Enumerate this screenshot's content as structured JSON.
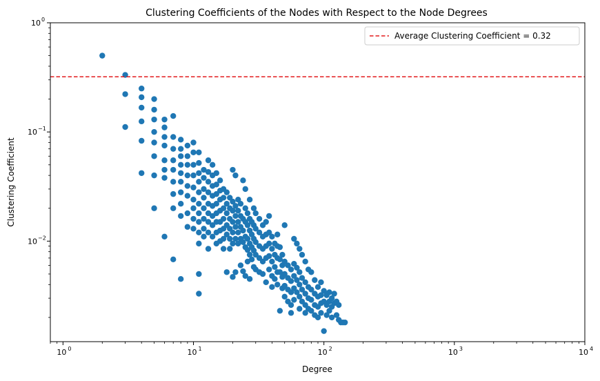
{
  "chart_data": {
    "type": "scatter",
    "title": "Clustering Coefficients of the Nodes with Respect to the Node Degrees",
    "xlabel": "Degree",
    "ylabel": "Clustering Coefficient",
    "xscale": "log",
    "yscale": "log",
    "xlim": [
      0.8,
      10000
    ],
    "ylim": [
      0.0012,
      1
    ],
    "grid": false,
    "legend_position": "top-right",
    "x_ticks": [
      {
        "value": 1,
        "label": "10",
        "exp": "0"
      },
      {
        "value": 10,
        "label": "10",
        "exp": "1"
      },
      {
        "value": 100,
        "label": "10",
        "exp": "2"
      },
      {
        "value": 1000,
        "label": "10",
        "exp": "3"
      },
      {
        "value": 10000,
        "label": "10",
        "exp": "4"
      }
    ],
    "y_ticks": [
      {
        "value": 0.01,
        "label": "10",
        "exp": "−2"
      },
      {
        "value": 0.1,
        "label": "10",
        "exp": "−1"
      },
      {
        "value": 1,
        "label": "10",
        "exp": "0"
      }
    ],
    "reference_line": {
      "orientation": "horizontal",
      "y": 0.32,
      "label": "Average Clustering Coefficient = 0.32",
      "color": "#e31a1c",
      "style": "dashed"
    },
    "colors": {
      "points": "#1f77b4",
      "average_line": "#e31a1c"
    },
    "points": [
      [
        2,
        0.5
      ],
      [
        3,
        0.333
      ],
      [
        3,
        0.222
      ],
      [
        3,
        0.111
      ],
      [
        4,
        0.25
      ],
      [
        4,
        0.208
      ],
      [
        4,
        0.167
      ],
      [
        4,
        0.125
      ],
      [
        4,
        0.083
      ],
      [
        4,
        0.042
      ],
      [
        5,
        0.2
      ],
      [
        5,
        0.16
      ],
      [
        5,
        0.13
      ],
      [
        5,
        0.1
      ],
      [
        5,
        0.08
      ],
      [
        5,
        0.06
      ],
      [
        5,
        0.04
      ],
      [
        5,
        0.02
      ],
      [
        6,
        0.13
      ],
      [
        6,
        0.11
      ],
      [
        6,
        0.09
      ],
      [
        6,
        0.075
      ],
      [
        6,
        0.055
      ],
      [
        6,
        0.045
      ],
      [
        6,
        0.038
      ],
      [
        6,
        0.011
      ],
      [
        7,
        0.14
      ],
      [
        7,
        0.09
      ],
      [
        7,
        0.07
      ],
      [
        7,
        0.055
      ],
      [
        7,
        0.045
      ],
      [
        7,
        0.035
      ],
      [
        7,
        0.027
      ],
      [
        7,
        0.02
      ],
      [
        7,
        0.0068
      ],
      [
        8,
        0.085
      ],
      [
        8,
        0.07
      ],
      [
        8,
        0.06
      ],
      [
        8,
        0.05
      ],
      [
        8,
        0.042
      ],
      [
        8,
        0.035
      ],
      [
        8,
        0.028
      ],
      [
        8,
        0.022
      ],
      [
        8,
        0.017
      ],
      [
        8,
        0.0045
      ],
      [
        9,
        0.075
      ],
      [
        9,
        0.06
      ],
      [
        9,
        0.05
      ],
      [
        9,
        0.04
      ],
      [
        9,
        0.032
      ],
      [
        9,
        0.026
      ],
      [
        9,
        0.018
      ],
      [
        9,
        0.0135
      ],
      [
        10,
        0.08
      ],
      [
        10,
        0.065
      ],
      [
        10,
        0.05
      ],
      [
        10,
        0.04
      ],
      [
        10,
        0.031
      ],
      [
        10,
        0.024
      ],
      [
        10,
        0.02
      ],
      [
        10,
        0.016
      ],
      [
        10,
        0.013
      ],
      [
        11,
        0.065
      ],
      [
        11,
        0.052
      ],
      [
        11,
        0.042
      ],
      [
        11,
        0.035
      ],
      [
        11,
        0.028
      ],
      [
        11,
        0.022
      ],
      [
        11,
        0.018
      ],
      [
        11,
        0.015
      ],
      [
        11,
        0.012
      ],
      [
        11,
        0.0095
      ],
      [
        11,
        0.005
      ],
      [
        11,
        0.0033
      ],
      [
        12,
        0.045
      ],
      [
        12,
        0.038
      ],
      [
        12,
        0.03
      ],
      [
        12,
        0.025
      ],
      [
        12,
        0.02
      ],
      [
        12,
        0.016
      ],
      [
        12,
        0.013
      ],
      [
        12,
        0.011
      ],
      [
        13,
        0.055
      ],
      [
        13,
        0.043
      ],
      [
        13,
        0.035
      ],
      [
        13,
        0.028
      ],
      [
        13,
        0.022
      ],
      [
        13,
        0.018
      ],
      [
        13,
        0.015
      ],
      [
        13,
        0.012
      ],
      [
        13,
        0.0085
      ],
      [
        14,
        0.05
      ],
      [
        14,
        0.04
      ],
      [
        14,
        0.032
      ],
      [
        14,
        0.026
      ],
      [
        14,
        0.021
      ],
      [
        14,
        0.017
      ],
      [
        14,
        0.014
      ],
      [
        14,
        0.011
      ],
      [
        15,
        0.042
      ],
      [
        15,
        0.033
      ],
      [
        15,
        0.027
      ],
      [
        15,
        0.022
      ],
      [
        15,
        0.018
      ],
      [
        15,
        0.015
      ],
      [
        15,
        0.012
      ],
      [
        15,
        0.0095
      ],
      [
        16,
        0.036
      ],
      [
        16,
        0.029
      ],
      [
        16,
        0.024
      ],
      [
        16,
        0.019
      ],
      [
        16,
        0.015
      ],
      [
        16,
        0.0125
      ],
      [
        16,
        0.01
      ],
      [
        17,
        0.03
      ],
      [
        17,
        0.025
      ],
      [
        17,
        0.02
      ],
      [
        17,
        0.016
      ],
      [
        17,
        0.013
      ],
      [
        17,
        0.0105
      ],
      [
        17,
        0.0085
      ],
      [
        18,
        0.028
      ],
      [
        18,
        0.022
      ],
      [
        18,
        0.018
      ],
      [
        18,
        0.014
      ],
      [
        18,
        0.0115
      ],
      [
        18,
        0.0052
      ],
      [
        19,
        0.025
      ],
      [
        19,
        0.02
      ],
      [
        19,
        0.016
      ],
      [
        19,
        0.013
      ],
      [
        19,
        0.0105
      ],
      [
        19,
        0.0085
      ],
      [
        20,
        0.045
      ],
      [
        20,
        0.023
      ],
      [
        20,
        0.019
      ],
      [
        20,
        0.015
      ],
      [
        20,
        0.012
      ],
      [
        20,
        0.0095
      ],
      [
        20,
        0.0047
      ],
      [
        21,
        0.04
      ],
      [
        21,
        0.021
      ],
      [
        21,
        0.017
      ],
      [
        21,
        0.0135
      ],
      [
        21,
        0.0105
      ],
      [
        21,
        0.0052
      ],
      [
        22,
        0.024
      ],
      [
        22,
        0.019
      ],
      [
        22,
        0.015
      ],
      [
        22,
        0.012
      ],
      [
        22,
        0.0095
      ],
      [
        23,
        0.022
      ],
      [
        23,
        0.017
      ],
      [
        23,
        0.0135
      ],
      [
        23,
        0.0105
      ],
      [
        23,
        0.006
      ],
      [
        24,
        0.036
      ],
      [
        24,
        0.016
      ],
      [
        24,
        0.0125
      ],
      [
        24,
        0.0098
      ],
      [
        24,
        0.0053
      ],
      [
        25,
        0.03
      ],
      [
        25,
        0.02
      ],
      [
        25,
        0.015
      ],
      [
        25,
        0.011
      ],
      [
        25,
        0.0088
      ],
      [
        25,
        0.0048
      ],
      [
        26,
        0.018
      ],
      [
        26,
        0.014
      ],
      [
        26,
        0.0105
      ],
      [
        26,
        0.0083
      ],
      [
        26,
        0.0065
      ],
      [
        27,
        0.024
      ],
      [
        27,
        0.016
      ],
      [
        27,
        0.0125
      ],
      [
        27,
        0.0095
      ],
      [
        27,
        0.0075
      ],
      [
        27,
        0.0045
      ],
      [
        28,
        0.015
      ],
      [
        28,
        0.0115
      ],
      [
        28,
        0.0088
      ],
      [
        28,
        0.0068
      ],
      [
        29,
        0.02
      ],
      [
        29,
        0.014
      ],
      [
        29,
        0.0105
      ],
      [
        29,
        0.0082
      ],
      [
        29,
        0.0058
      ],
      [
        30,
        0.018
      ],
      [
        30,
        0.013
      ],
      [
        30,
        0.0098
      ],
      [
        30,
        0.0075
      ],
      [
        30,
        0.0055
      ],
      [
        32,
        0.016
      ],
      [
        32,
        0.012
      ],
      [
        32,
        0.009
      ],
      [
        32,
        0.007
      ],
      [
        32,
        0.0052
      ],
      [
        34,
        0.014
      ],
      [
        34,
        0.011
      ],
      [
        34,
        0.0085
      ],
      [
        34,
        0.0065
      ],
      [
        34,
        0.005
      ],
      [
        36,
        0.015
      ],
      [
        36,
        0.0115
      ],
      [
        36,
        0.009
      ],
      [
        36,
        0.007
      ],
      [
        36,
        0.0042
      ],
      [
        38,
        0.017
      ],
      [
        38,
        0.012
      ],
      [
        38,
        0.0095
      ],
      [
        38,
        0.0073
      ],
      [
        38,
        0.0055
      ],
      [
        40,
        0.011
      ],
      [
        40,
        0.0085
      ],
      [
        40,
        0.0065
      ],
      [
        40,
        0.0048
      ],
      [
        40,
        0.0038
      ],
      [
        42,
        0.0095
      ],
      [
        42,
        0.0075
      ],
      [
        42,
        0.0058
      ],
      [
        42,
        0.0045
      ],
      [
        44,
        0.0115
      ],
      [
        44,
        0.009
      ],
      [
        44,
        0.007
      ],
      [
        44,
        0.0052
      ],
      [
        44,
        0.004
      ],
      [
        46,
        0.0088
      ],
      [
        46,
        0.0068
      ],
      [
        46,
        0.0052
      ],
      [
        46,
        0.0023
      ],
      [
        48,
        0.0075
      ],
      [
        48,
        0.006
      ],
      [
        48,
        0.0047
      ],
      [
        48,
        0.0037
      ],
      [
        50,
        0.014
      ],
      [
        50,
        0.0065
      ],
      [
        50,
        0.005
      ],
      [
        50,
        0.0039
      ],
      [
        50,
        0.0031
      ],
      [
        53,
        0.006
      ],
      [
        53,
        0.0046
      ],
      [
        53,
        0.0036
      ],
      [
        53,
        0.0028
      ],
      [
        56,
        0.0055
      ],
      [
        56,
        0.0043
      ],
      [
        56,
        0.0034
      ],
      [
        56,
        0.0026
      ],
      [
        56,
        0.0022
      ],
      [
        59,
        0.0105
      ],
      [
        59,
        0.0062
      ],
      [
        59,
        0.0048
      ],
      [
        59,
        0.0037
      ],
      [
        59,
        0.0029
      ],
      [
        62,
        0.0095
      ],
      [
        62,
        0.0057
      ],
      [
        62,
        0.0044
      ],
      [
        62,
        0.0034
      ],
      [
        65,
        0.0085
      ],
      [
        65,
        0.0052
      ],
      [
        65,
        0.004
      ],
      [
        65,
        0.0031
      ],
      [
        65,
        0.0024
      ],
      [
        68,
        0.0075
      ],
      [
        68,
        0.0046
      ],
      [
        68,
        0.0036
      ],
      [
        68,
        0.0028
      ],
      [
        72,
        0.0065
      ],
      [
        72,
        0.0042
      ],
      [
        72,
        0.0033
      ],
      [
        72,
        0.0026
      ],
      [
        72,
        0.0022
      ],
      [
        76,
        0.0055
      ],
      [
        76,
        0.0038
      ],
      [
        76,
        0.003
      ],
      [
        76,
        0.0024
      ],
      [
        80,
        0.0052
      ],
      [
        80,
        0.0036
      ],
      [
        80,
        0.0029
      ],
      [
        80,
        0.0023
      ],
      [
        85,
        0.0044
      ],
      [
        85,
        0.0033
      ],
      [
        85,
        0.0026
      ],
      [
        85,
        0.0021
      ],
      [
        90,
        0.0038
      ],
      [
        90,
        0.0031
      ],
      [
        90,
        0.0025
      ],
      [
        90,
        0.002
      ],
      [
        95,
        0.0042
      ],
      [
        95,
        0.0032
      ],
      [
        95,
        0.0027
      ],
      [
        95,
        0.0022
      ],
      [
        100,
        0.0035
      ],
      [
        100,
        0.0028
      ],
      [
        100,
        0.0015
      ],
      [
        105,
        0.0032
      ],
      [
        105,
        0.0026
      ],
      [
        105,
        0.0021
      ],
      [
        110,
        0.0034
      ],
      [
        110,
        0.0028
      ],
      [
        110,
        0.0023
      ],
      [
        115,
        0.003
      ],
      [
        115,
        0.0025
      ],
      [
        115,
        0.002
      ],
      [
        120,
        0.0033
      ],
      [
        120,
        0.0027
      ],
      [
        125,
        0.0028
      ],
      [
        125,
        0.0021
      ],
      [
        130,
        0.0026
      ],
      [
        130,
        0.0019
      ],
      [
        135,
        0.0018
      ],
      [
        140,
        0.0018
      ],
      [
        145,
        0.0018
      ]
    ]
  }
}
